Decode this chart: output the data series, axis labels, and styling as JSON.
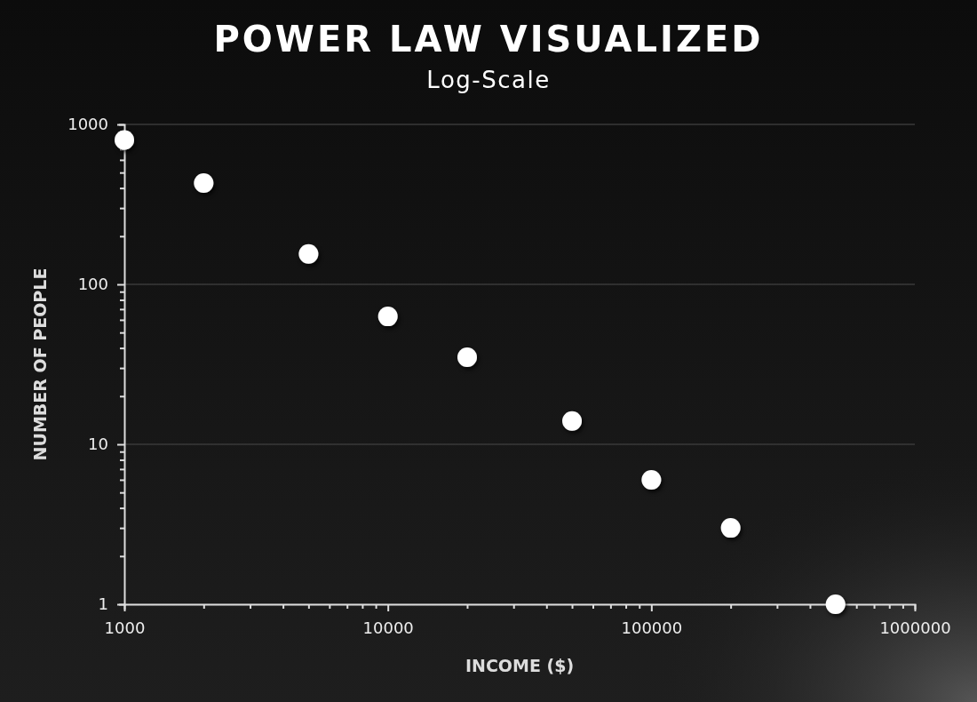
{
  "chart_data": {
    "type": "scatter",
    "title": "POWER LAW VISUALIZED",
    "subtitle": "Log-Scale",
    "xlabel": "INCOME ($)",
    "ylabel": "NUMBER OF PEOPLE",
    "x": [
      1000,
      2000,
      5000,
      10000,
      20000,
      50000,
      100000,
      200000,
      500000
    ],
    "series": [
      {
        "color": "#ffffff",
        "values": [
          800,
          430,
          155,
          63,
          35,
          14,
          6,
          3,
          1
        ]
      }
    ],
    "log": "xy",
    "grid": "y",
    "marker": "circle",
    "xlim": [
      1000,
      1000000
    ],
    "ylim": [
      1,
      1000
    ],
    "xticks": [
      1000,
      {
        "value": 2000,
        "label": null
      },
      {
        "value": 3000,
        "label": null
      },
      {
        "value": 4000,
        "label": null
      },
      {
        "value": 5000,
        "label": null
      },
      {
        "value": 6000,
        "label": null
      },
      {
        "value": 7000,
        "label": null
      },
      {
        "value": 8000,
        "label": null
      },
      {
        "value": 9000,
        "label": null
      },
      10000,
      {
        "value": 20000,
        "label": null
      },
      {
        "value": 30000,
        "label": null
      },
      {
        "value": 40000,
        "label": null
      },
      {
        "value": 50000,
        "label": null
      },
      {
        "value": 60000,
        "label": null
      },
      {
        "value": 70000,
        "label": null
      },
      {
        "value": 80000,
        "label": null
      },
      {
        "value": 90000,
        "label": null
      },
      100000,
      {
        "value": 200000,
        "label": null
      },
      {
        "value": 300000,
        "label": null
      },
      {
        "value": 400000,
        "label": null
      },
      {
        "value": 500000,
        "label": null
      },
      {
        "value": 600000,
        "label": null
      },
      {
        "value": 700000,
        "label": null
      },
      {
        "value": 800000,
        "label": null
      },
      {
        "value": 900000,
        "label": null
      },
      1000000
    ],
    "yticks": [
      1,
      {
        "value": 2,
        "label": null
      },
      {
        "value": 3,
        "label": null
      },
      {
        "value": 4,
        "label": null
      },
      {
        "value": 5,
        "label": null
      },
      {
        "value": 6,
        "label": null
      },
      {
        "value": 7,
        "label": null
      },
      {
        "value": 8,
        "label": null
      },
      {
        "value": 9,
        "label": null
      },
      10,
      {
        "value": 20,
        "label": null
      },
      {
        "value": 30,
        "label": null
      },
      {
        "value": 40,
        "label": null
      },
      {
        "value": 50,
        "label": null
      },
      {
        "value": 60,
        "label": null
      },
      {
        "value": 70,
        "label": null
      },
      {
        "value": 80,
        "label": null
      },
      {
        "value": 90,
        "label": null
      },
      100,
      {
        "value": 200,
        "label": null
      },
      {
        "value": 300,
        "label": null
      },
      {
        "value": 400,
        "label": null
      },
      {
        "value": 500,
        "label": null
      },
      {
        "value": 600,
        "label": null
      },
      {
        "value": 700,
        "label": null
      },
      {
        "value": 800,
        "label": null
      },
      {
        "value": 900,
        "label": null
      },
      1000
    ]
  }
}
